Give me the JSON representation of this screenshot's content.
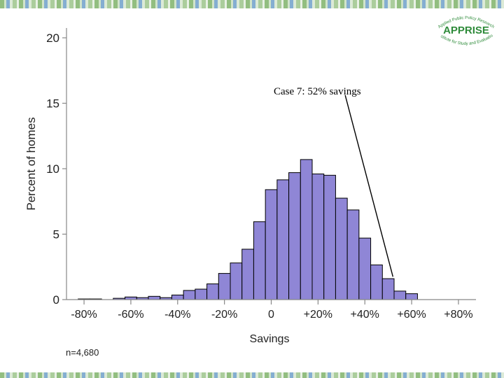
{
  "logo": {
    "name": "APPRISE",
    "arc_top": "Applied Public Policy Research",
    "arc_bottom": "Institute for Study and Evaluation",
    "color": "#2e8b3a"
  },
  "footnote": "n=4,680",
  "colors": {
    "bar_fill": "#8f86d6",
    "bar_stroke": "#000000",
    "stripe": "#7fb26a"
  },
  "chart_data": {
    "type": "bar",
    "title": "",
    "xlabel": "Savings",
    "ylabel": "Percent of homes",
    "bin_width": 5,
    "xlim": [
      -87.5,
      87.5
    ],
    "ylim": [
      0,
      20
    ],
    "x_ticks": [
      {
        "value": -80,
        "label": "-80%"
      },
      {
        "value": -60,
        "label": "-60%"
      },
      {
        "value": -40,
        "label": "-40%"
      },
      {
        "value": -20,
        "label": "-20%"
      },
      {
        "value": 0,
        "label": "0"
      },
      {
        "value": 20,
        "label": "+20%"
      },
      {
        "value": 40,
        "label": "+40%"
      },
      {
        "value": 60,
        "label": "+60%"
      },
      {
        "value": 80,
        "label": "+80%"
      }
    ],
    "y_ticks": [
      {
        "value": 0,
        "label": "0"
      },
      {
        "value": 5,
        "label": "5"
      },
      {
        "value": 10,
        "label": "10"
      },
      {
        "value": 15,
        "label": "15"
      },
      {
        "value": 20,
        "label": "20"
      }
    ],
    "bins": [
      {
        "x": -80,
        "y": 0.05
      },
      {
        "x": -75,
        "y": 0.05
      },
      {
        "x": -65,
        "y": 0.1
      },
      {
        "x": -60,
        "y": 0.2
      },
      {
        "x": -55,
        "y": 0.15
      },
      {
        "x": -50,
        "y": 0.25
      },
      {
        "x": -45,
        "y": 0.15
      },
      {
        "x": -40,
        "y": 0.35
      },
      {
        "x": -35,
        "y": 0.7
      },
      {
        "x": -30,
        "y": 0.8
      },
      {
        "x": -25,
        "y": 1.2
      },
      {
        "x": -20,
        "y": 2.0
      },
      {
        "x": -15,
        "y": 2.8
      },
      {
        "x": -10,
        "y": 3.85
      },
      {
        "x": -5,
        "y": 5.95
      },
      {
        "x": 0,
        "y": 8.4
      },
      {
        "x": 5,
        "y": 9.15
      },
      {
        "x": 10,
        "y": 9.7
      },
      {
        "x": 15,
        "y": 10.7
      },
      {
        "x": 20,
        "y": 9.6
      },
      {
        "x": 25,
        "y": 9.5
      },
      {
        "x": 30,
        "y": 7.75
      },
      {
        "x": 35,
        "y": 6.85
      },
      {
        "x": 40,
        "y": 4.7
      },
      {
        "x": 45,
        "y": 2.65
      },
      {
        "x": 50,
        "y": 1.6
      },
      {
        "x": 55,
        "y": 0.65
      },
      {
        "x": 60,
        "y": 0.45
      }
    ],
    "annotation": {
      "text": "Case 7:  52% savings",
      "point": {
        "x": 52,
        "y": 1.75
      },
      "label_anchor": {
        "x": 31,
        "y": 15.3
      }
    }
  }
}
